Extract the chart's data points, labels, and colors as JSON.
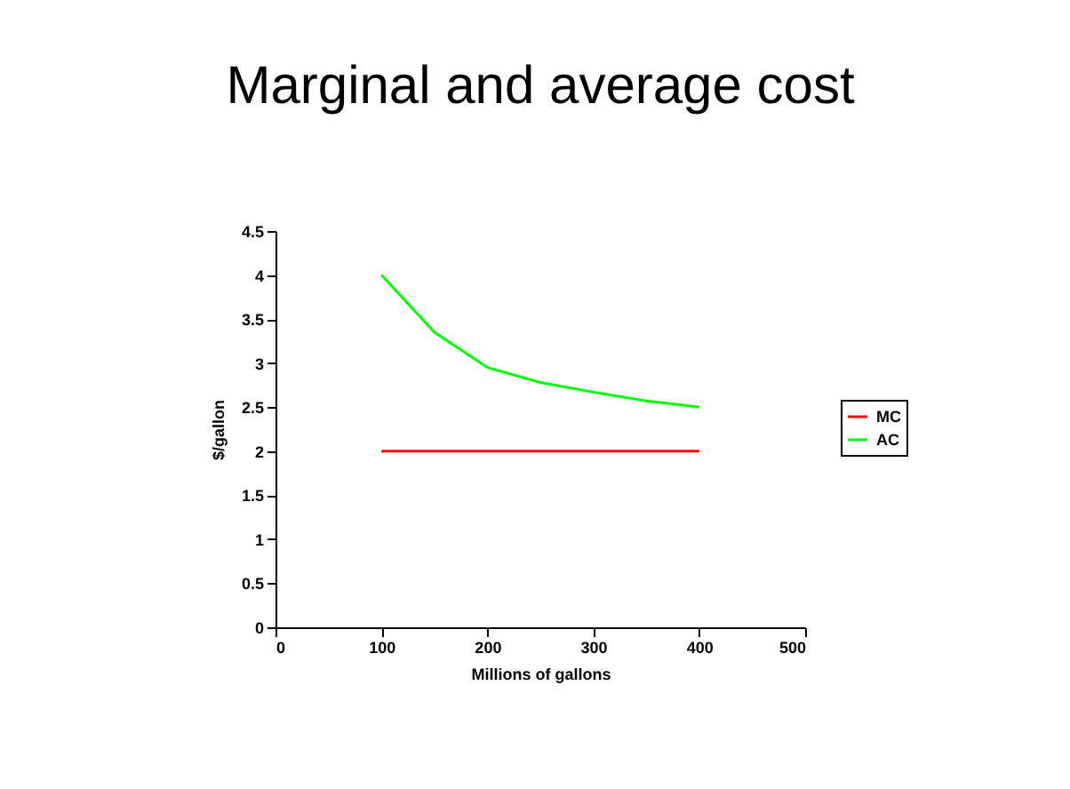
{
  "chart_data": {
    "type": "line",
    "title": "Marginal and average cost",
    "xlabel": "Millions of gallons",
    "ylabel": "$/gallon",
    "xlim": [
      0,
      500
    ],
    "xticks": [
      0,
      100,
      200,
      300,
      400,
      500
    ],
    "ylim": [
      0,
      4.5
    ],
    "yticks": [
      0,
      0.5,
      1,
      1.5,
      2,
      2.5,
      3,
      3.5,
      4,
      4.5
    ],
    "grid": false,
    "legend": "right",
    "marker": "none",
    "line_style": "solid",
    "series": [
      {
        "name": "MC",
        "color": "#ff0000",
        "x": [
          100,
          200,
          300,
          400
        ],
        "values": [
          2,
          2,
          2,
          2
        ]
      },
      {
        "name": "AC",
        "color": "#00ff00",
        "x": [
          100,
          150,
          200,
          250,
          300,
          350,
          400
        ],
        "values": [
          4,
          3.35,
          2.95,
          2.78,
          2.67,
          2.57,
          2.5
        ]
      }
    ]
  }
}
